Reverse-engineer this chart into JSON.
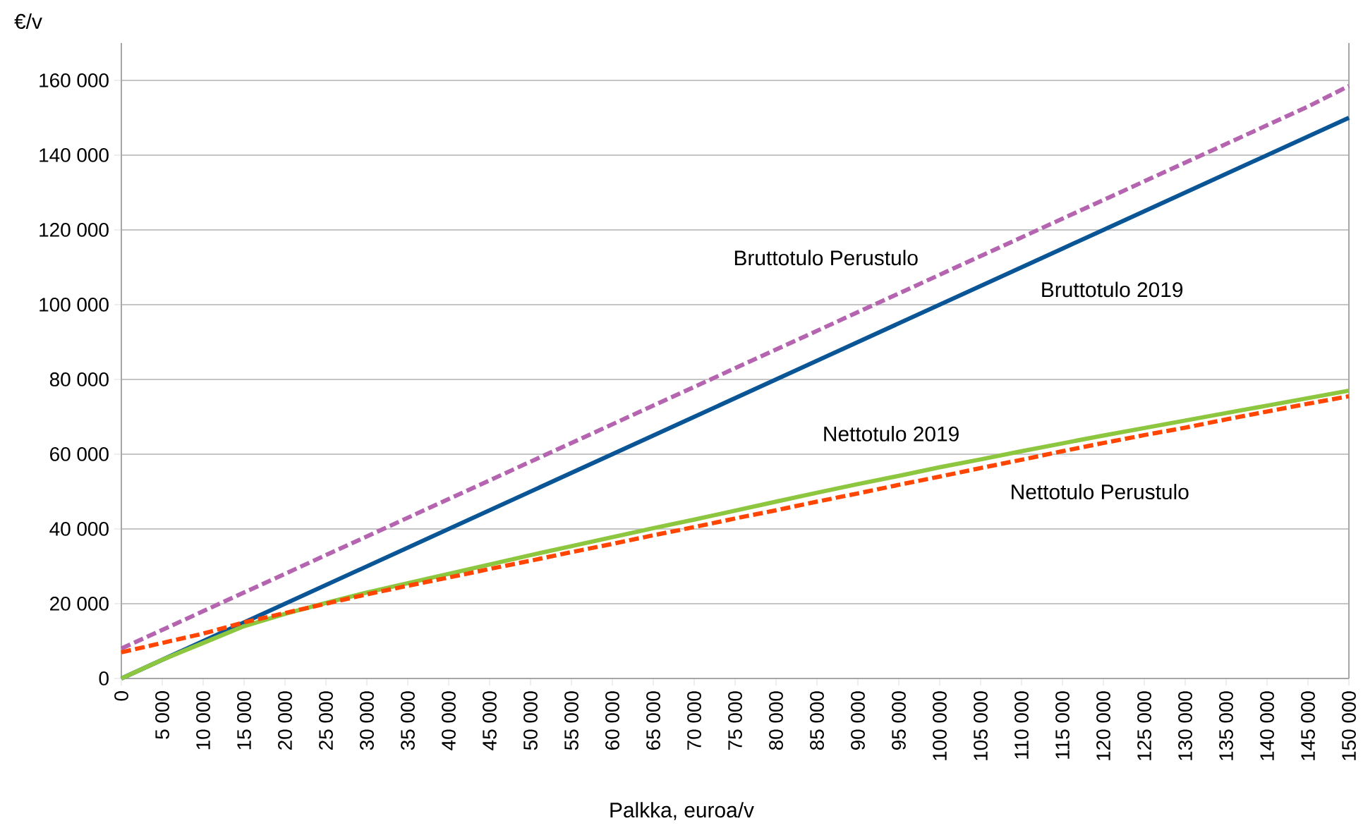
{
  "chart_data": {
    "type": "line",
    "xlabel": "Palkka, euroa/v",
    "ylabel": "€/v",
    "x": [
      0,
      5000,
      10000,
      15000,
      20000,
      25000,
      30000,
      35000,
      40000,
      45000,
      50000,
      55000,
      60000,
      65000,
      70000,
      75000,
      80000,
      85000,
      90000,
      95000,
      100000,
      105000,
      110000,
      115000,
      120000,
      125000,
      130000,
      135000,
      140000,
      145000,
      150000
    ],
    "series": [
      {
        "name": "Bruttotulo 2019",
        "color": "#0a5596",
        "line_style": "solid",
        "values": [
          0,
          5000,
          10000,
          15000,
          20000,
          25000,
          30000,
          35000,
          40000,
          45000,
          50000,
          55000,
          60000,
          65000,
          70000,
          75000,
          80000,
          85000,
          90000,
          95000,
          100000,
          105000,
          110000,
          115000,
          120000,
          125000,
          130000,
          135000,
          140000,
          145000,
          150000
        ]
      },
      {
        "name": "Bruttotulo Perustulo",
        "color": "#b565b0",
        "line_style": "dashed",
        "values": [
          8000,
          13000,
          18000,
          23000,
          28000,
          33000,
          38000,
          43000,
          48000,
          53000,
          58000,
          63000,
          68000,
          73000,
          78000,
          83000,
          88000,
          93000,
          98000,
          103000,
          108000,
          113000,
          118000,
          123000,
          128000,
          133000,
          138000,
          143000,
          148000,
          153000,
          158500
        ]
      },
      {
        "name": "Nettotulo 2019",
        "color": "#8dc63f",
        "line_style": "solid",
        "values": [
          0,
          5000,
          9500,
          14000,
          17300,
          20200,
          23000,
          25500,
          28000,
          30500,
          33000,
          35400,
          37800,
          40200,
          42500,
          44900,
          47300,
          49700,
          52000,
          54200,
          56500,
          58600,
          60800,
          62900,
          65000,
          67000,
          69000,
          71000,
          73000,
          75000,
          77000
        ]
      },
      {
        "name": "Nettotulo Perustulo",
        "color": "#ff4500",
        "line_style": "dashed",
        "values": [
          7000,
          9500,
          12000,
          15000,
          17500,
          20000,
          22500,
          24800,
          27000,
          29300,
          31500,
          33800,
          36000,
          38300,
          40500,
          42800,
          45000,
          47300,
          49500,
          51800,
          54000,
          56300,
          58500,
          60800,
          63000,
          65100,
          67100,
          69300,
          71400,
          73500,
          75500
        ]
      }
    ],
    "xlim": [
      0,
      150000
    ],
    "xticks": [
      {
        "value": 0,
        "label": "0"
      },
      {
        "value": 5000,
        "label": "5 000"
      },
      {
        "value": 10000,
        "label": "10 000"
      },
      {
        "value": 15000,
        "label": "15 000"
      },
      {
        "value": 20000,
        "label": "20 000"
      },
      {
        "value": 25000,
        "label": "25 000"
      },
      {
        "value": 30000,
        "label": "30 000"
      },
      {
        "value": 35000,
        "label": "35 000"
      },
      {
        "value": 40000,
        "label": "40 000"
      },
      {
        "value": 45000,
        "label": "45 000"
      },
      {
        "value": 50000,
        "label": "50 000"
      },
      {
        "value": 55000,
        "label": "55 000"
      },
      {
        "value": 60000,
        "label": "60 000"
      },
      {
        "value": 65000,
        "label": "65 000"
      },
      {
        "value": 70000,
        "label": "70 000"
      },
      {
        "value": 75000,
        "label": "75 000"
      },
      {
        "value": 80000,
        "label": "80 000"
      },
      {
        "value": 85000,
        "label": "85 000"
      },
      {
        "value": 90000,
        "label": "90 000"
      },
      {
        "value": 95000,
        "label": "95 000"
      },
      {
        "value": 100000,
        "label": "100 000"
      },
      {
        "value": 105000,
        "label": "105 000"
      },
      {
        "value": 110000,
        "label": "110 000"
      },
      {
        "value": 115000,
        "label": "115 000"
      },
      {
        "value": 120000,
        "label": "120 000"
      },
      {
        "value": 125000,
        "label": "125 000"
      },
      {
        "value": 130000,
        "label": "130 000"
      },
      {
        "value": 135000,
        "label": "135 000"
      },
      {
        "value": 140000,
        "label": "140 000"
      },
      {
        "value": 145000,
        "label": "145 000"
      },
      {
        "value": 150000,
        "label": "150 000"
      }
    ],
    "ylim": [
      0,
      170000
    ],
    "yticks": [
      0,
      {
        "value": 20000,
        "label": "20 000"
      },
      {
        "value": 40000,
        "label": "40 000"
      },
      {
        "value": 60000,
        "label": "60 000"
      },
      {
        "value": 80000,
        "label": "80 000"
      },
      {
        "value": 100000,
        "label": "100 000"
      },
      {
        "value": 120000,
        "label": "120 000"
      },
      {
        "value": 140000,
        "label": "140 000"
      },
      {
        "value": 160000,
        "label": "160 000"
      }
    ],
    "grid": "y",
    "marker": "none"
  }
}
